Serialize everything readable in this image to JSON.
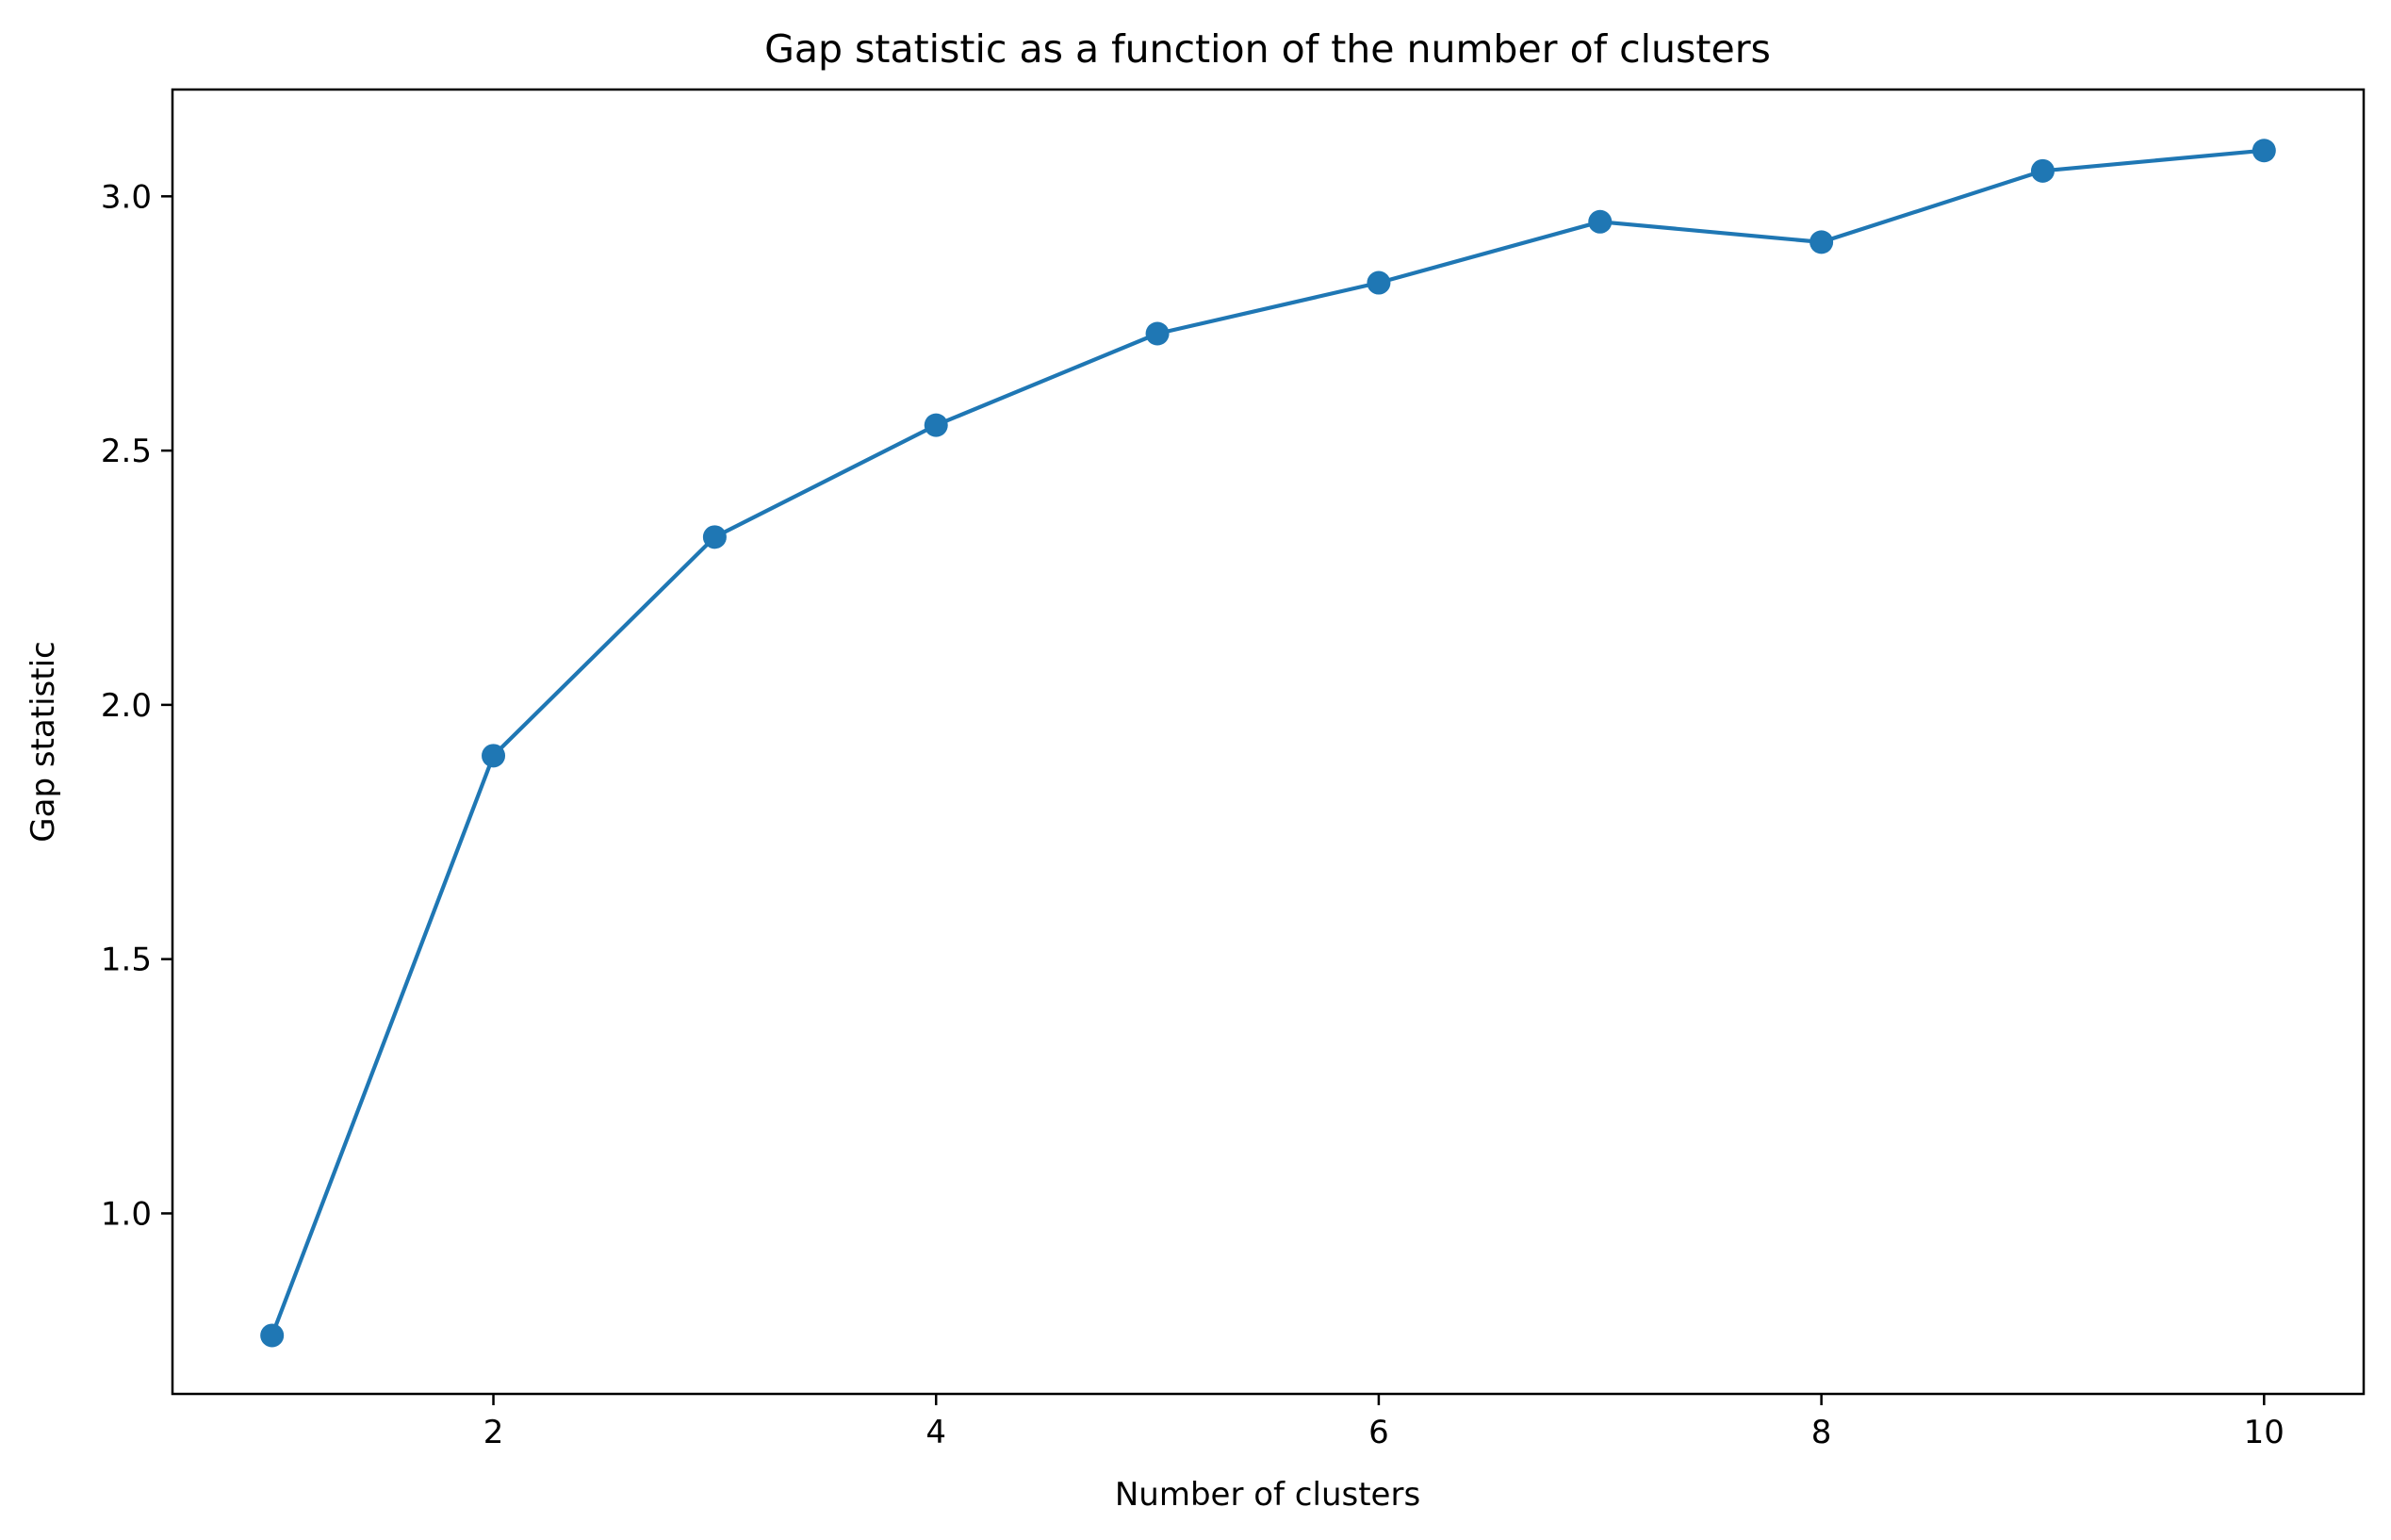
{
  "chart_data": {
    "type": "line",
    "title": "Gap statistic as a function of the number of clusters",
    "xlabel": "Number of clusters",
    "ylabel": "Gap statistic",
    "xlim": [
      0.55,
      10.45
    ],
    "ylim": [
      0.645,
      3.21
    ],
    "xticks": [
      2,
      4,
      6,
      8,
      10
    ],
    "yticks": [
      1.0,
      1.5,
      2.0,
      2.5,
      3.0
    ],
    "xtick_labels": [
      "2",
      "4",
      "6",
      "8",
      "10"
    ],
    "ytick_labels": [
      "1.0",
      "1.5",
      "2.0",
      "2.5",
      "3.0"
    ],
    "grid": false,
    "marker": "circle",
    "series": [
      {
        "color": "#1f77b4",
        "x": [
          1,
          2,
          3,
          4,
          5,
          6,
          7,
          8,
          9,
          10
        ],
        "y": [
          0.76,
          1.9,
          2.33,
          2.55,
          2.73,
          2.83,
          2.95,
          2.91,
          3.05,
          3.09
        ]
      }
    ]
  }
}
